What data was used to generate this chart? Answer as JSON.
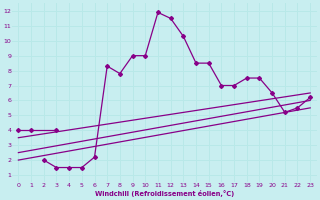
{
  "xlabel": "Windchill (Refroidissement éolien,°C)",
  "xlim": [
    -0.5,
    23.5
  ],
  "ylim": [
    0.5,
    12.5
  ],
  "xticks": [
    0,
    1,
    2,
    3,
    4,
    5,
    6,
    7,
    8,
    9,
    10,
    11,
    12,
    13,
    14,
    15,
    16,
    17,
    18,
    19,
    20,
    21,
    22,
    23
  ],
  "yticks": [
    1,
    2,
    3,
    4,
    5,
    6,
    7,
    8,
    9,
    10,
    11,
    12
  ],
  "bg_color": "#c8eef0",
  "line_color": "#880088",
  "grid_color": "#aadddd",
  "line1": {
    "x": [
      0,
      1,
      3
    ],
    "y": [
      4.0,
      4.0,
      4.0
    ]
  },
  "line2": {
    "x": [
      2,
      3,
      4,
      5,
      6,
      7,
      8,
      9,
      10,
      11,
      12,
      13,
      14,
      15,
      16,
      17,
      18,
      19,
      20,
      21,
      22,
      23
    ],
    "y": [
      2.0,
      1.5,
      1.5,
      1.5,
      2.2,
      8.3,
      7.8,
      9.0,
      9.0,
      11.9,
      11.5,
      10.3,
      8.5,
      8.5,
      7.0,
      7.0,
      7.5,
      7.5,
      6.5,
      5.2,
      5.5,
      6.2
    ]
  },
  "line3": {
    "x": [
      0,
      23
    ],
    "y": [
      3.5,
      6.5
    ]
  },
  "line4": {
    "x": [
      0,
      23
    ],
    "y": [
      2.5,
      6.0
    ]
  },
  "line5": {
    "x": [
      0,
      23
    ],
    "y": [
      2.0,
      5.5
    ]
  }
}
